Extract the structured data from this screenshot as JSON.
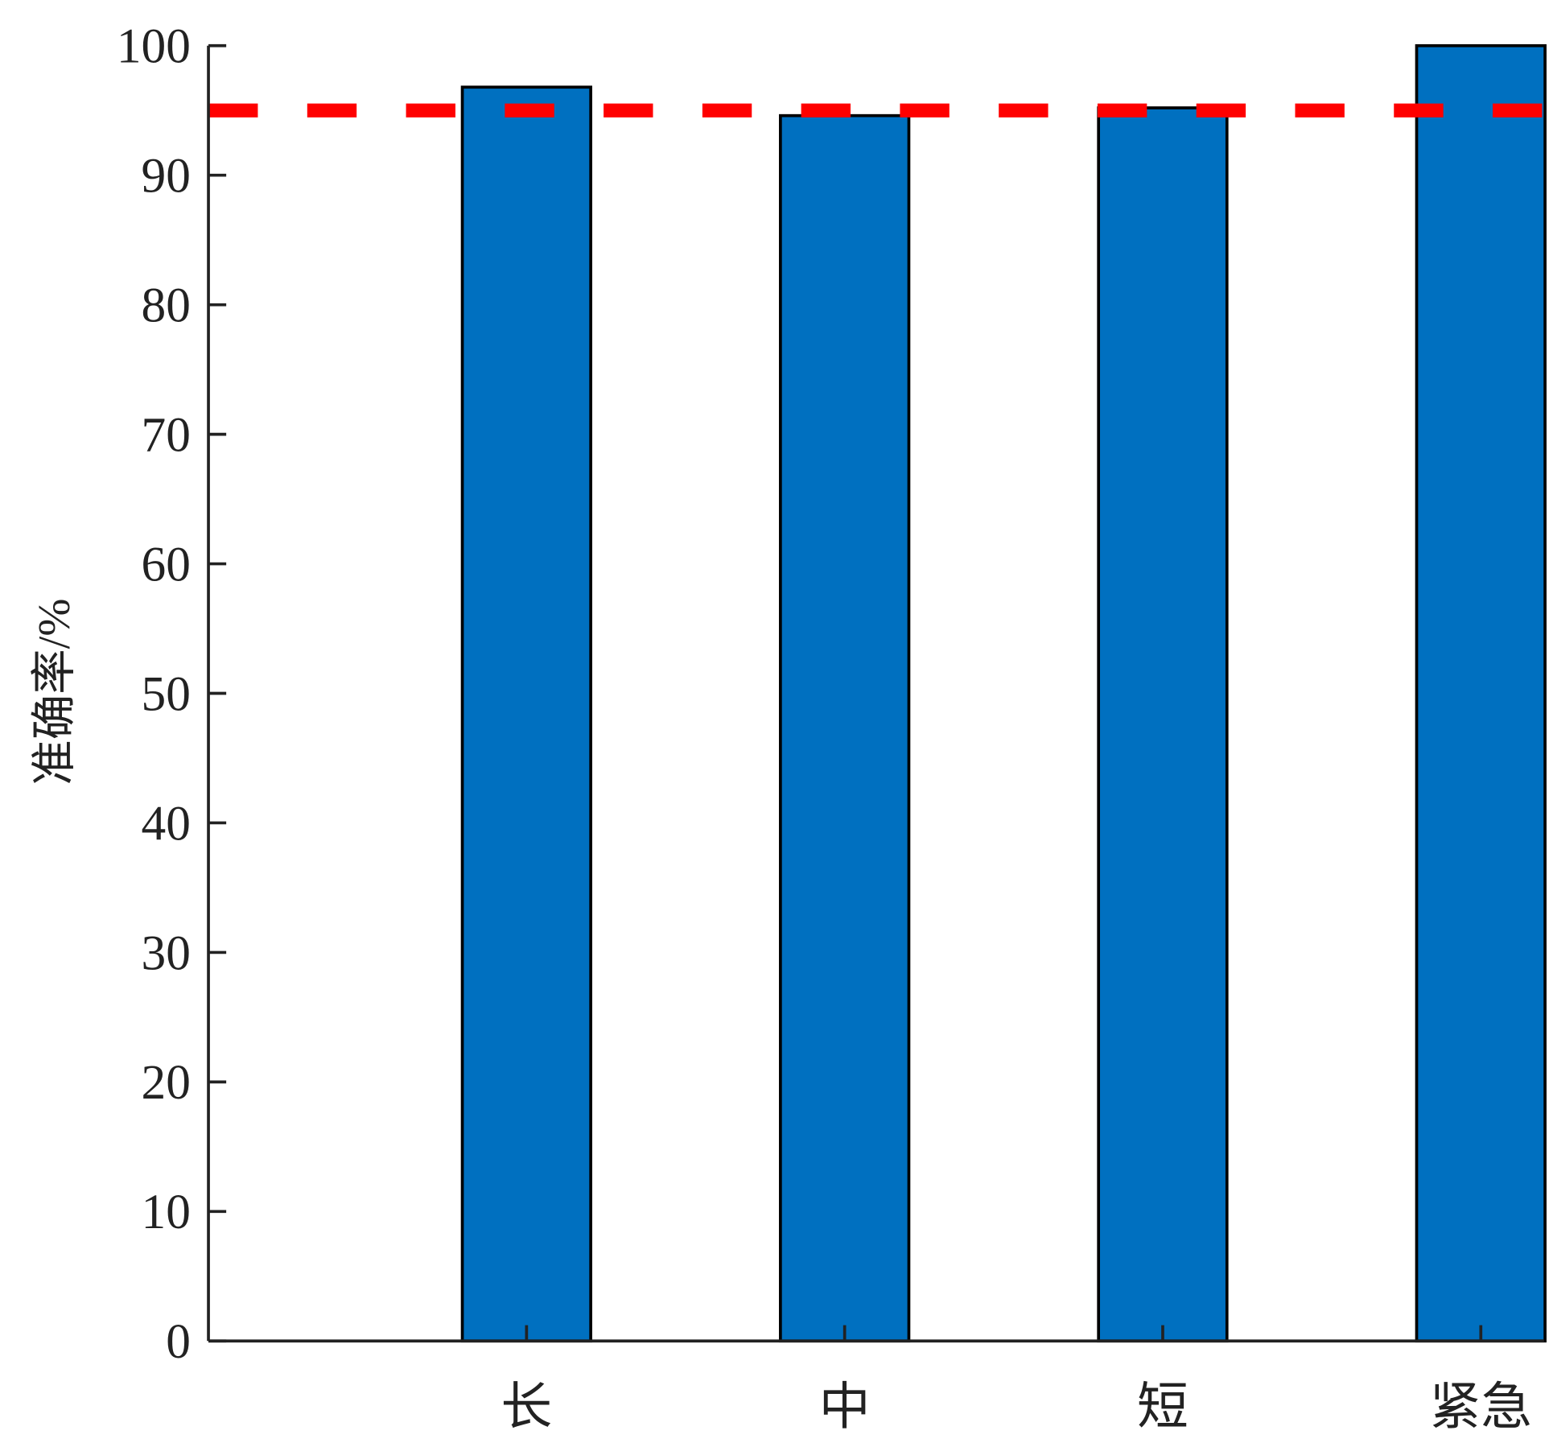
{
  "chart_data": {
    "type": "bar",
    "title": "",
    "xlabel": "",
    "ylabel": "准确率/%",
    "categories": [
      "长",
      "中",
      "短",
      "紧急"
    ],
    "values": [
      96.8,
      94.6,
      95.2,
      100
    ],
    "ylim": [
      0,
      100
    ],
    "yticks": [
      0,
      10,
      20,
      30,
      40,
      50,
      60,
      70,
      80,
      90,
      100
    ],
    "reference_line": {
      "value": 95,
      "style": "dashed",
      "color": "#ff0000"
    },
    "bar_color": "#0070c0",
    "bar_edge_color": "#000000",
    "grid": false
  }
}
